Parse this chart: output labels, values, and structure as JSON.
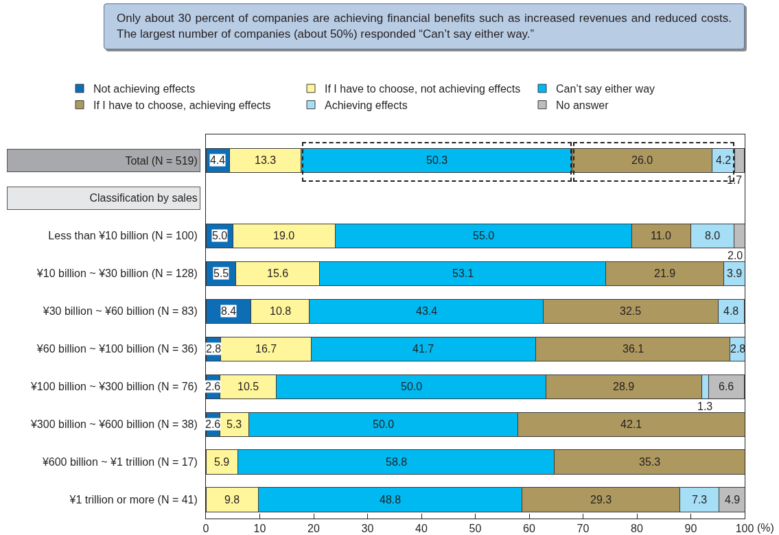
{
  "chart_data": {
    "type": "bar",
    "orientation": "horizontal",
    "stacked": true,
    "title": "Only about 30 percent of companies are achieving financial benefits such as increased revenues and reduced costs. The largest number of companies (about 50%) responded “Can’t say either way.”",
    "xlabel": "(%)",
    "categories": [
      "Total (N = 519)",
      "Classification by sales",
      "Less than ¥10 billion (N = 100)",
      "¥10 billion ~ ¥30 billion (N = 128)",
      "¥30 billion ~ ¥60 billion (N = 83)",
      "¥60 billion ~ ¥100 billion (N = 36)",
      "¥100 billion ~ ¥300 billion (N = 76)",
      "¥300 billion ~ ¥600 billion (N = 38)",
      "¥600 billion ~ ¥1 trillion (N = 17)",
      "¥1 trillion or more (N = 41)"
    ],
    "series": [
      {
        "name": "Not achieving effects",
        "color": "#0d6eb6",
        "values": [
          4.4,
          null,
          5.0,
          5.5,
          8.4,
          2.8,
          2.6,
          2.6,
          null,
          null
        ],
        "value_labels": [
          "4.4",
          null,
          "5.0",
          "5.5",
          "8.4",
          "2.8",
          "2.6",
          "2.6",
          null,
          null
        ]
      },
      {
        "name": "If I have to choose, not achieving effects",
        "color": "#fff59b",
        "values": [
          13.3,
          null,
          19.0,
          15.6,
          10.8,
          16.7,
          10.5,
          5.3,
          5.9,
          9.8
        ],
        "value_labels": [
          "13.3",
          null,
          "19.0",
          "15.6",
          "10.8",
          "16.7",
          "10.5",
          "5.3",
          "5.9",
          "9.8"
        ]
      },
      {
        "name": "Can’t say either way",
        "color": "#00b9f1",
        "values": [
          50.3,
          null,
          55.0,
          53.1,
          43.4,
          41.7,
          50.0,
          50.0,
          58.8,
          48.8
        ],
        "value_labels": [
          "50.3",
          null,
          "55.0",
          "53.1",
          "43.4",
          "41.7",
          "50.0",
          "50.0",
          "58.8",
          "48.8"
        ]
      },
      {
        "name": "If I have to choose, achieving effects",
        "color": "#ad985f",
        "values": [
          26.0,
          null,
          11.0,
          21.9,
          32.5,
          36.1,
          28.9,
          42.1,
          35.3,
          29.3
        ],
        "value_labels": [
          "26.0",
          null,
          "11.0",
          "21.9",
          "32.5",
          "36.1",
          "28.9",
          "42.1",
          "35.3",
          "29.3"
        ]
      },
      {
        "name": "Achieving effects",
        "color": "#a6def6",
        "values": [
          4.2,
          null,
          8.0,
          3.9,
          4.8,
          2.8,
          1.3,
          null,
          null,
          7.3
        ],
        "value_labels": [
          "4.2",
          null,
          "8.0",
          "3.9",
          "4.8",
          "2.8",
          "1.3",
          null,
          null,
          "7.3"
        ]
      },
      {
        "name": "No answer",
        "color": "#bdbdbd",
        "values": [
          1.7,
          null,
          2.0,
          null,
          null,
          null,
          6.6,
          null,
          null,
          4.9
        ],
        "value_labels": [
          "1.7",
          null,
          "2.0",
          null,
          null,
          null,
          "6.6",
          null,
          null,
          "4.9"
        ]
      }
    ],
    "xlim": [
      0,
      100
    ],
    "xticks": [
      0,
      10,
      20,
      30,
      40,
      50,
      60,
      70,
      80,
      90,
      100
    ],
    "legend": "top"
  }
}
